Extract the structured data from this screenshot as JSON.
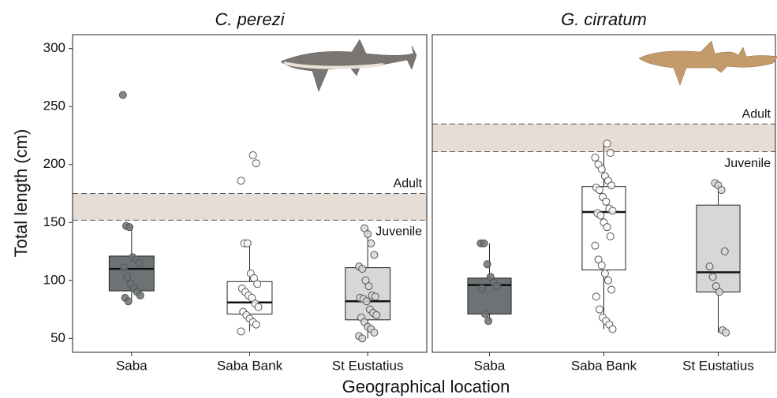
{
  "chart_data": {
    "type": "box",
    "xlabel": "Geographical location",
    "ylabel": "Total length (cm)",
    "ylim": [
      38,
      312
    ],
    "yticks": [
      50,
      100,
      150,
      200,
      250,
      300
    ],
    "panels": [
      {
        "title": "C. perezi",
        "categories": [
          "Saba",
          "Saba Bank",
          "St Eustatius"
        ],
        "band": {
          "lower": 152,
          "upper": 175,
          "lower_label": "Juvenile",
          "upper_label": "Adult"
        },
        "boxes": [
          {
            "color": "#6d7275",
            "q1": 91,
            "median": 110,
            "q3": 121,
            "whisker_low": 82,
            "whisker_high": 147,
            "points": [
              260,
              147,
              146,
              120,
              118,
              115,
              111,
              103,
              97,
              93,
              90,
              87,
              85,
              82
            ]
          },
          {
            "color": "#ffffff",
            "q1": 71,
            "median": 81,
            "q3": 99,
            "whisker_low": 56,
            "whisker_high": 132,
            "points": [
              208,
              201,
              186,
              132,
              132,
              106,
              102,
              97,
              93,
              90,
              87,
              85,
              80,
              77,
              73,
              70,
              67,
              64,
              62,
              56
            ]
          },
          {
            "color": "#d6d7d8",
            "q1": 66,
            "median": 82,
            "q3": 111,
            "whisker_low": 50,
            "whisker_high": 145,
            "points": [
              145,
              140,
              132,
              122,
              112,
              110,
              100,
              95,
              87,
              86,
              85,
              84,
              82,
              75,
              72,
              70,
              68,
              64,
              60,
              58,
              55,
              52,
              50
            ]
          }
        ]
      },
      {
        "title": "G. cirratum",
        "categories": [
          "Saba",
          "Saba Bank",
          "St Eustatius"
        ],
        "band": {
          "lower": 211,
          "upper": 235,
          "lower_label": "Juvenile",
          "upper_label": "Adult"
        },
        "boxes": [
          {
            "color": "#6d7275",
            "q1": 71,
            "median": 96,
            "q3": 102,
            "whisker_low": 65,
            "whisker_high": 132,
            "points": [
              132,
              132,
              114,
              103,
              98,
              95,
              93,
              71,
              65
            ]
          },
          {
            "color": "#ffffff",
            "q1": 109,
            "median": 159,
            "q3": 181,
            "whisker_low": 58,
            "whisker_high": 218,
            "points": [
              218,
              210,
              206,
              200,
              196,
              190,
              186,
              182,
              180,
              178,
              172,
              168,
              162,
              160,
              158,
              156,
              150,
              146,
              138,
              130,
              118,
              113,
              106,
              100,
              92,
              86,
              75,
              68,
              65,
              62,
              58
            ]
          },
          {
            "color": "#d6d7d8",
            "q1": 90,
            "median": 107,
            "q3": 165,
            "whisker_low": 55,
            "whisker_high": 184,
            "points": [
              184,
              182,
              178,
              125,
              112,
              103,
              95,
              90,
              57,
              55
            ]
          }
        ]
      }
    ]
  }
}
